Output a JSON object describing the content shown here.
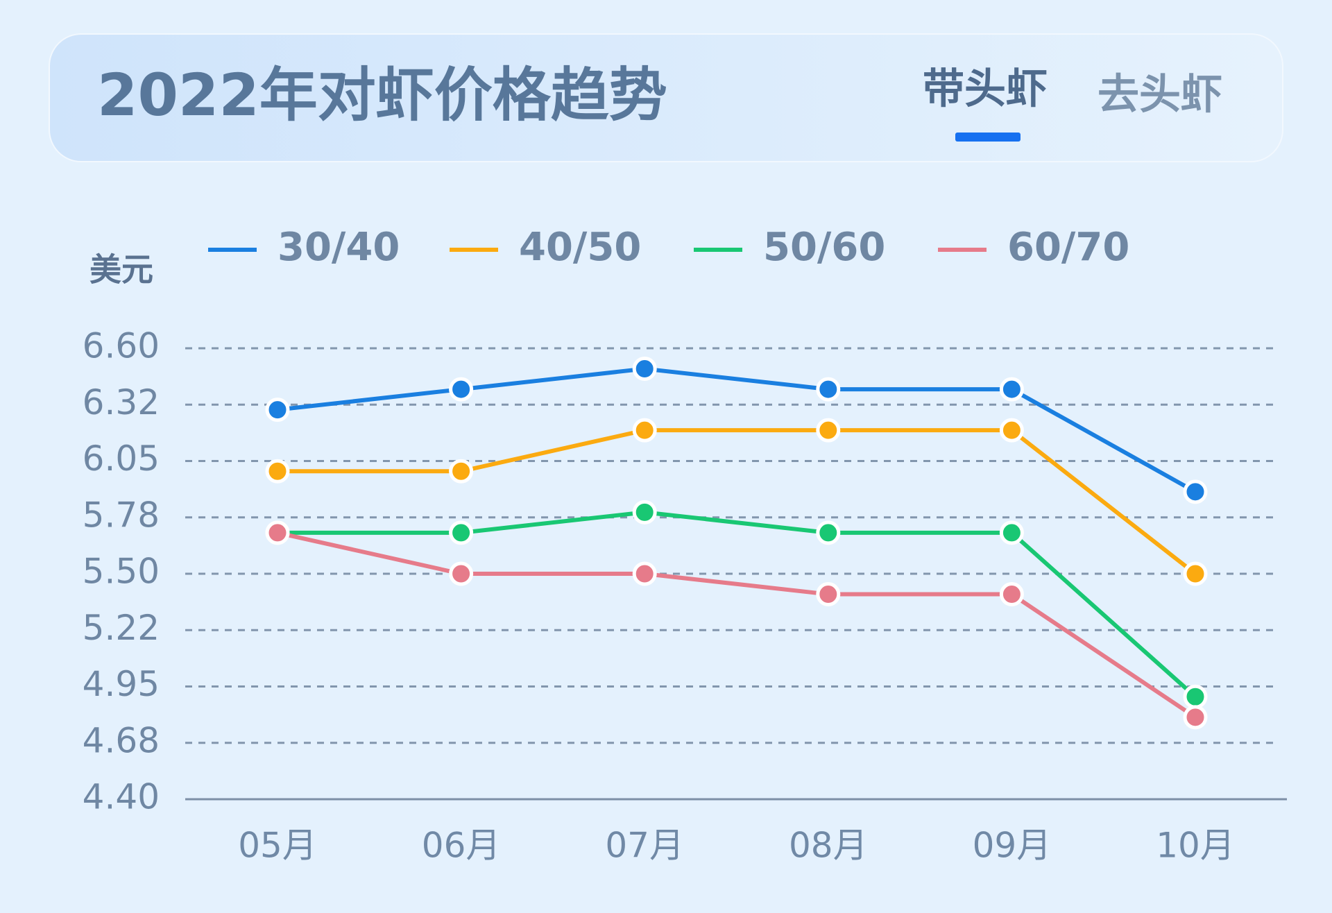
{
  "tabs": [
    "带头虾",
    "去头虾"
  ],
  "chart_data": {
    "type": "line",
    "title": "2022年对虾价格趋势",
    "y_label": "美元",
    "categories": [
      "05月",
      "06月",
      "07月",
      "08月",
      "09月",
      "10月"
    ],
    "series": [
      {
        "name": "30/40",
        "color": "#1a7fe0",
        "values": [
          6.3,
          6.4,
          6.5,
          6.4,
          6.4,
          5.9
        ]
      },
      {
        "name": "40/50",
        "color": "#fbaa10",
        "values": [
          6.0,
          6.0,
          6.2,
          6.2,
          6.2,
          5.5
        ]
      },
      {
        "name": "50/60",
        "color": "#19c773",
        "values": [
          5.7,
          5.7,
          5.8,
          5.7,
          5.7,
          4.9
        ]
      },
      {
        "name": "60/70",
        "color": "#e67b8a",
        "values": [
          5.7,
          5.5,
          5.5,
          5.4,
          5.4,
          4.8
        ]
      }
    ],
    "ylim": [
      4.4,
      6.6
    ],
    "yticks": [
      {
        "value": 4.4,
        "label": "4.40"
      },
      {
        "value": 4.675,
        "label": "4.68"
      },
      {
        "value": 4.95,
        "label": "4.95"
      },
      {
        "value": 5.225,
        "label": "5.22"
      },
      {
        "value": 5.5,
        "label": "5.50"
      },
      {
        "value": 5.775,
        "label": "5.78"
      },
      {
        "value": 6.05,
        "label": "6.05"
      },
      {
        "value": 6.325,
        "label": "6.32"
      },
      {
        "value": 6.6,
        "label": "6.60"
      }
    ],
    "grid": true
  }
}
